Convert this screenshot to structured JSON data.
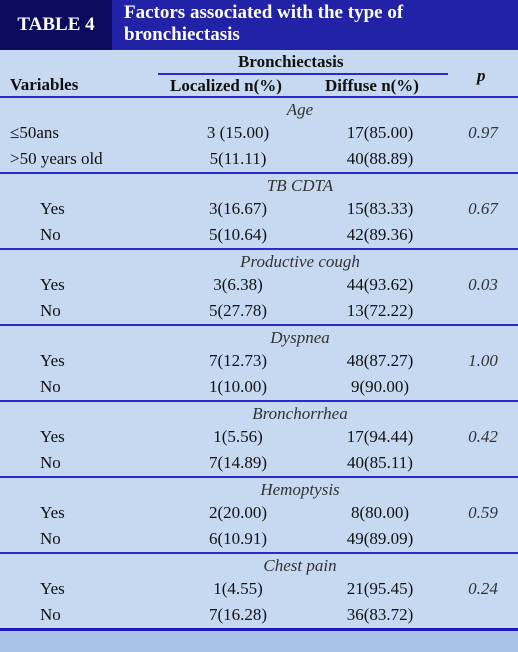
{
  "header": {
    "label": "TABLE 4",
    "title": "Factors associated with the type of bronchiectasis"
  },
  "columns": {
    "variables": "Variables",
    "group": "Bronchiectasis",
    "localized": "Localized n(%)",
    "diffuse": "Diffuse n(%)",
    "p": "p"
  },
  "groups": [
    {
      "label": "Age",
      "p": "0.97",
      "rows": [
        [
          "≤50ans",
          "3 (15.00)",
          "17(85.00)"
        ],
        [
          ">50 years old",
          "5(11.11)",
          "40(88.89)"
        ]
      ]
    },
    {
      "label": "TB CDTA",
      "p": "0.67",
      "rows": [
        [
          "Yes",
          "3(16.67)",
          "15(83.33)"
        ],
        [
          "No",
          "5(10.64)",
          "42(89.36)"
        ]
      ]
    },
    {
      "label": "Productive cough",
      "p": "0.03",
      "rows": [
        [
          "Yes",
          "3(6.38)",
          "44(93.62)"
        ],
        [
          "No",
          "5(27.78)",
          "13(72.22)"
        ]
      ]
    },
    {
      "label": "Dyspnea",
      "p": "1.00",
      "rows": [
        [
          "Yes",
          "7(12.73)",
          "48(87.27)"
        ],
        [
          "No",
          "1(10.00)",
          "9(90.00)"
        ]
      ]
    },
    {
      "label": "Bronchorrhea",
      "p": "0.42",
      "rows": [
        [
          "Yes",
          "1(5.56)",
          "17(94.44)"
        ],
        [
          "No",
          "7(14.89)",
          "40(85.11)"
        ]
      ]
    },
    {
      "label": "Hemoptysis",
      "p": "0.59",
      "rows": [
        [
          "Yes",
          "2(20.00)",
          "8(80.00)"
        ],
        [
          "No",
          "6(10.91)",
          "49(89.09)"
        ]
      ]
    },
    {
      "label": "Chest pain",
      "p": "0.24",
      "rows": [
        [
          "Yes",
          "1(4.55)",
          "21(95.45)"
        ],
        [
          "No",
          "7(16.28)",
          "36(83.72)"
        ]
      ]
    }
  ]
}
